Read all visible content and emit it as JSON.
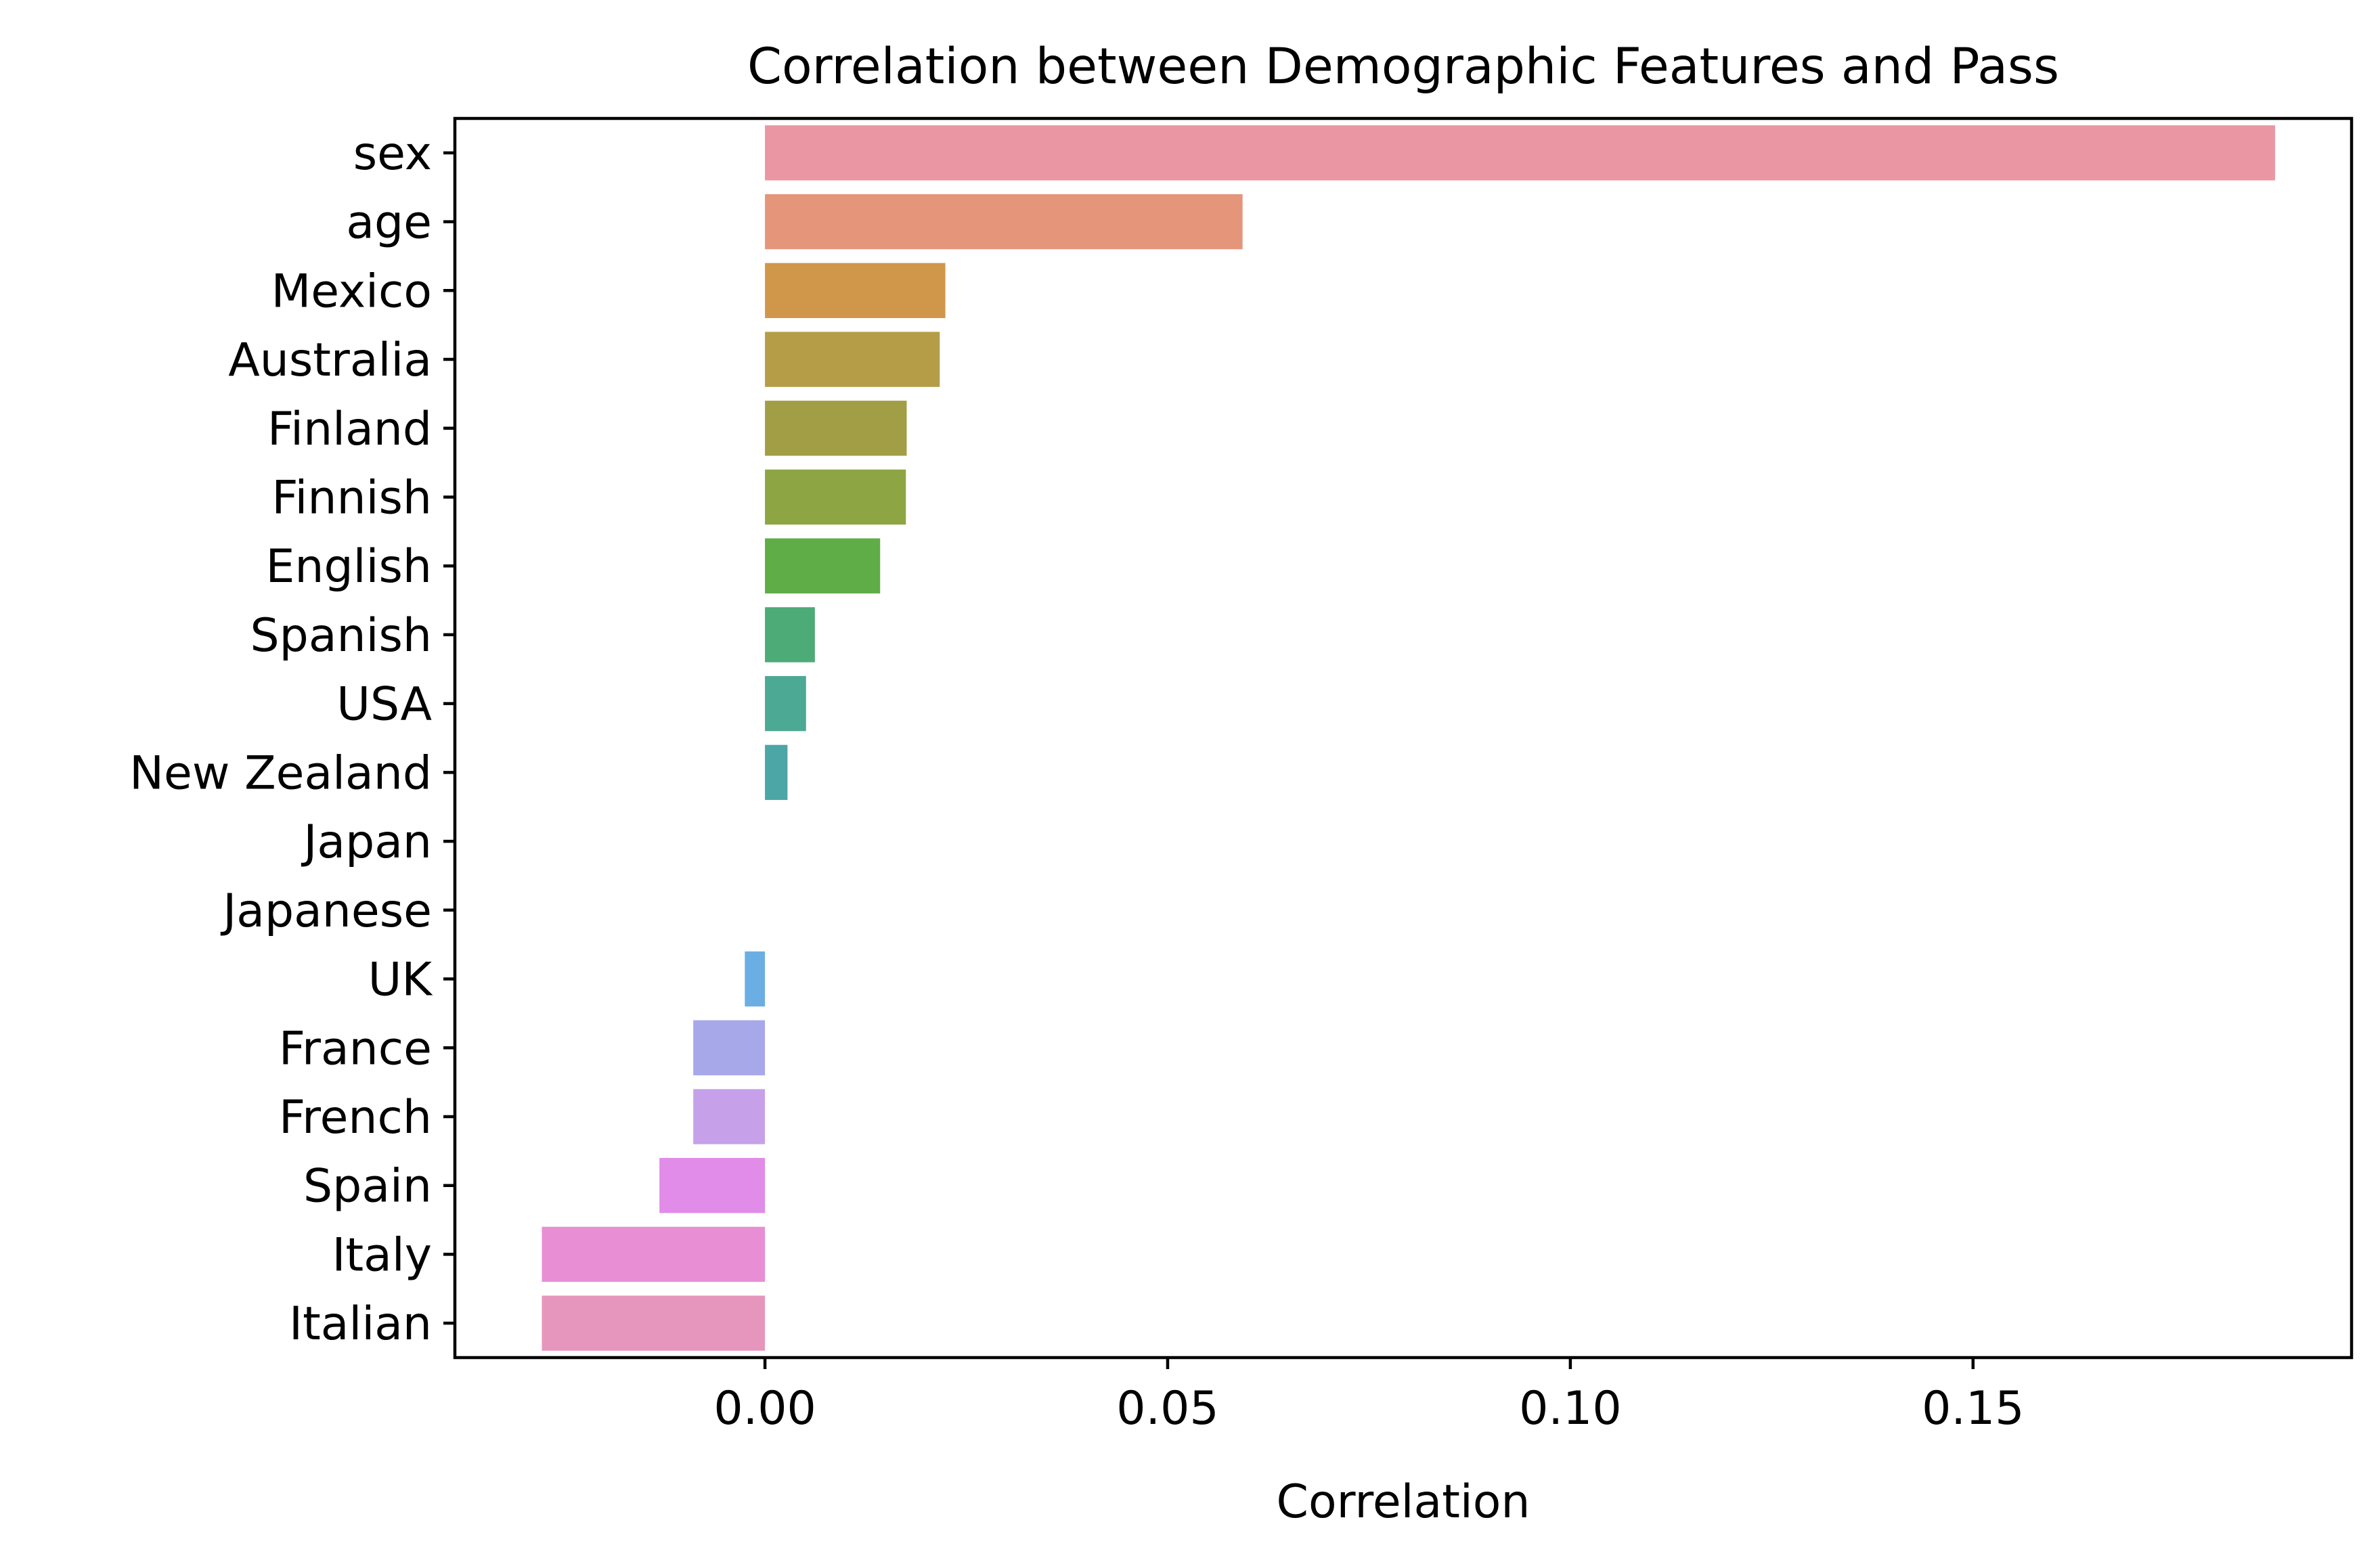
{
  "chart_data": {
    "type": "bar",
    "orientation": "horizontal",
    "title": "Correlation between Demographic Features and Pass",
    "xlabel": "Correlation",
    "ylabel": "",
    "xlim": [
      -0.0385,
      0.197
    ],
    "xticks": [
      0.0,
      0.05,
      0.1,
      0.15
    ],
    "xtick_labels": [
      "0.00",
      "0.05",
      "0.10",
      "0.15"
    ],
    "grid": false,
    "legend": "none",
    "categories": [
      "sex",
      "age",
      "Mexico",
      "Australia",
      "Finland",
      "Finnish",
      "English",
      "Spanish",
      "USA",
      "New Zealand",
      "Japan",
      "Japanese",
      "UK",
      "France",
      "French",
      "Spain",
      "Italy",
      "Italian"
    ],
    "values": [
      0.1875,
      0.0593,
      0.0224,
      0.0217,
      0.0176,
      0.0175,
      0.0143,
      0.0062,
      0.0051,
      0.0028,
      0.0,
      0.0,
      -0.0025,
      -0.0089,
      -0.0089,
      -0.0131,
      -0.0277,
      -0.0277
    ],
    "colors": [
      "#eb96a3",
      "#e5957a",
      "#d0974b",
      "#b59c46",
      "#a29e46",
      "#8ea544",
      "#5ead46",
      "#4cab77",
      "#4ba994",
      "#4ca6a6",
      "#4aa6b7",
      "#4ba6c8",
      "#6aaee3",
      "#a7a8ea",
      "#c6a1ea",
      "#e08ce8",
      "#e88ed5",
      "#e696bd"
    ]
  }
}
